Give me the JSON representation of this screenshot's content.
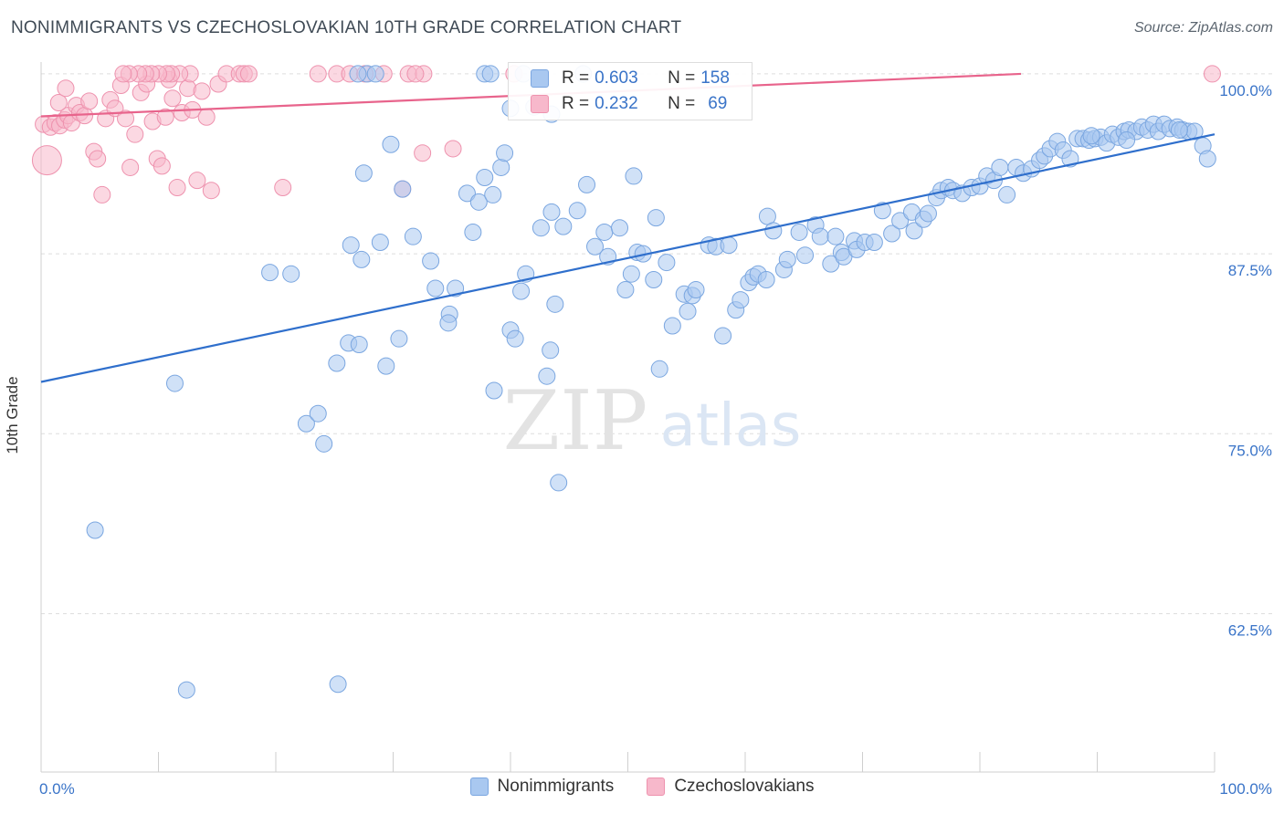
{
  "title": "NONIMMIGRANTS VS CZECHOSLOVAKIAN 10TH GRADE CORRELATION CHART",
  "source": "Source: ZipAtlas.com",
  "watermark": {
    "zip": "ZIP",
    "atlas": "atlas"
  },
  "colors": {
    "blue_fill": "#a9c8f0",
    "blue_stroke": "#7aa6e0",
    "blue_line": "#2f6fcc",
    "pink_fill": "#f7b8cb",
    "pink_stroke": "#ee92ae",
    "pink_line": "#e8648c",
    "axis_text": "#3a74c8",
    "grid": "#dddddd"
  },
  "legend": {
    "rows": [
      {
        "r_label": "R =",
        "r_value": "0.603",
        "n_label": "N =",
        "n_value": "158"
      },
      {
        "r_label": "R =",
        "r_value": "0.232",
        "n_label": "N =",
        "n_value": "69"
      }
    ]
  },
  "bottom_legend": [
    "Nonimmigrants",
    "Czechoslovakians"
  ],
  "chart_data": {
    "type": "scatter",
    "title": "NONIMMIGRANTS VS CZECHOSLOVAKIAN 10TH GRADE CORRELATION CHART",
    "xlabel": "",
    "ylabel": "10th Grade",
    "xlim": [
      0,
      100
    ],
    "ylim": [
      51.5,
      101.2
    ],
    "x_tick_labels": [
      "0.0%",
      "100.0%"
    ],
    "y_ticks": [
      62.5,
      75.0,
      87.5,
      100.0
    ],
    "y_tick_labels": [
      "62.5%",
      "75.0%",
      "87.5%",
      "100.0%"
    ],
    "grid": "horizontal dashed",
    "legend_position": "top-center",
    "series": [
      {
        "name": "Nonimmigrants",
        "r": 0.603,
        "n": 158,
        "trend": [
          [
            0,
            78.6
          ],
          [
            100,
            95.8
          ]
        ],
        "points": [
          [
            11.4,
            78.5
          ],
          [
            4.6,
            68.3
          ],
          [
            12.4,
            57.2
          ],
          [
            19.5,
            86.2
          ],
          [
            21.3,
            86.1
          ],
          [
            22.6,
            75.7
          ],
          [
            23.6,
            76.4
          ],
          [
            25.3,
            57.6
          ],
          [
            24.1,
            74.3
          ],
          [
            25.2,
            79.9
          ],
          [
            26.2,
            81.3
          ],
          [
            27.1,
            81.2
          ],
          [
            27.3,
            87.1
          ],
          [
            26.4,
            88.1
          ],
          [
            27.5,
            93.1
          ],
          [
            28.9,
            88.3
          ],
          [
            29.4,
            79.7
          ],
          [
            30.5,
            81.6
          ],
          [
            30.8,
            92.0
          ],
          [
            29.8,
            95.1
          ],
          [
            31.7,
            88.7
          ],
          [
            33.2,
            87.0
          ],
          [
            33.6,
            85.1
          ],
          [
            35.3,
            85.1
          ],
          [
            34.8,
            83.3
          ],
          [
            34.7,
            82.7
          ],
          [
            36.3,
            91.7
          ],
          [
            36.8,
            89.0
          ],
          [
            37.3,
            91.1
          ],
          [
            37.8,
            92.8
          ],
          [
            38.5,
            91.6
          ],
          [
            39.2,
            93.5
          ],
          [
            39.5,
            94.5
          ],
          [
            38.6,
            78.0
          ],
          [
            40.0,
            82.2
          ],
          [
            40.4,
            81.6
          ],
          [
            40.9,
            84.9
          ],
          [
            41.3,
            86.1
          ],
          [
            42.6,
            89.3
          ],
          [
            43.8,
            84.0
          ],
          [
            43.5,
            90.4
          ],
          [
            43.4,
            80.8
          ],
          [
            43.1,
            79.0
          ],
          [
            44.5,
            89.4
          ],
          [
            44.1,
            71.6
          ],
          [
            45.7,
            90.5
          ],
          [
            46.5,
            92.3
          ],
          [
            47.2,
            88.0
          ],
          [
            48.0,
            89.0
          ],
          [
            48.3,
            87.3
          ],
          [
            49.3,
            89.3
          ],
          [
            49.8,
            85.0
          ],
          [
            50.3,
            86.1
          ],
          [
            50.5,
            92.9
          ],
          [
            50.8,
            87.6
          ],
          [
            51.3,
            87.5
          ],
          [
            52.2,
            85.7
          ],
          [
            52.4,
            90.0
          ],
          [
            52.7,
            79.5
          ],
          [
            53.3,
            86.9
          ],
          [
            53.8,
            82.5
          ],
          [
            54.8,
            84.7
          ],
          [
            55.5,
            84.6
          ],
          [
            55.8,
            85.0
          ],
          [
            55.1,
            83.5
          ],
          [
            56.9,
            88.1
          ],
          [
            57.5,
            88.0
          ],
          [
            58.6,
            88.1
          ],
          [
            58.1,
            81.8
          ],
          [
            59.2,
            83.6
          ],
          [
            59.6,
            84.3
          ],
          [
            60.3,
            85.5
          ],
          [
            60.7,
            85.9
          ],
          [
            61.1,
            86.1
          ],
          [
            61.8,
            85.7
          ],
          [
            61.9,
            90.1
          ],
          [
            62.4,
            89.1
          ],
          [
            63.3,
            86.4
          ],
          [
            63.6,
            87.1
          ],
          [
            64.6,
            89.0
          ],
          [
            65.1,
            87.4
          ],
          [
            66.0,
            89.5
          ],
          [
            66.4,
            88.7
          ],
          [
            67.3,
            86.8
          ],
          [
            67.7,
            88.7
          ],
          [
            68.2,
            87.6
          ],
          [
            68.4,
            87.3
          ],
          [
            69.3,
            88.4
          ],
          [
            69.5,
            87.8
          ],
          [
            70.2,
            88.3
          ],
          [
            71.0,
            88.3
          ],
          [
            71.7,
            90.5
          ],
          [
            72.5,
            88.9
          ],
          [
            73.2,
            89.8
          ],
          [
            74.2,
            90.4
          ],
          [
            74.4,
            89.1
          ],
          [
            75.2,
            89.9
          ],
          [
            75.6,
            90.3
          ],
          [
            76.3,
            91.4
          ],
          [
            76.7,
            91.9
          ],
          [
            77.3,
            92.1
          ],
          [
            77.7,
            91.9
          ],
          [
            78.5,
            91.7
          ],
          [
            79.3,
            92.1
          ],
          [
            80.0,
            92.2
          ],
          [
            80.6,
            92.9
          ],
          [
            81.2,
            92.6
          ],
          [
            81.7,
            93.5
          ],
          [
            82.3,
            91.6
          ],
          [
            83.1,
            93.5
          ],
          [
            83.7,
            93.1
          ],
          [
            84.4,
            93.4
          ],
          [
            85.1,
            94.0
          ],
          [
            85.5,
            94.3
          ],
          [
            86.0,
            94.8
          ],
          [
            86.6,
            95.3
          ],
          [
            87.1,
            94.7
          ],
          [
            87.7,
            94.1
          ],
          [
            88.3,
            95.5
          ],
          [
            88.8,
            95.5
          ],
          [
            89.3,
            95.4
          ],
          [
            89.8,
            95.5
          ],
          [
            90.3,
            95.6
          ],
          [
            90.8,
            95.2
          ],
          [
            91.3,
            95.8
          ],
          [
            91.8,
            95.6
          ],
          [
            92.3,
            96.0
          ],
          [
            92.7,
            96.1
          ],
          [
            93.3,
            96.0
          ],
          [
            93.8,
            96.3
          ],
          [
            94.3,
            96.1
          ],
          [
            94.8,
            96.5
          ],
          [
            95.2,
            96.0
          ],
          [
            95.7,
            96.5
          ],
          [
            96.2,
            96.2
          ],
          [
            96.8,
            96.3
          ],
          [
            97.3,
            96.1
          ],
          [
            97.8,
            96.0
          ],
          [
            98.3,
            96.0
          ],
          [
            99.0,
            95.0
          ],
          [
            99.4,
            94.1
          ],
          [
            97.0,
            96.1
          ],
          [
            92.5,
            95.4
          ],
          [
            89.5,
            95.7
          ],
          [
            27.8,
            100.0
          ],
          [
            27.0,
            100.0
          ],
          [
            28.5,
            100.0
          ],
          [
            37.8,
            100.0
          ],
          [
            38.3,
            100.0
          ],
          [
            40.0,
            97.6
          ],
          [
            42.0,
            97.7
          ],
          [
            43.5,
            97.2
          ],
          [
            41.1,
            100.0
          ],
          [
            46.2,
            100.0
          ]
        ]
      },
      {
        "name": "Czechoslovakians",
        "r": 0.232,
        "n": 69,
        "trend": [
          [
            0,
            97.05
          ],
          [
            83.5,
            100.0
          ]
        ],
        "points": [
          [
            0.2,
            96.5
          ],
          [
            0.5,
            94.0
          ],
          [
            0.8,
            96.3
          ],
          [
            1.2,
            96.6
          ],
          [
            1.6,
            96.4
          ],
          [
            2.0,
            96.8
          ],
          [
            2.3,
            97.1
          ],
          [
            2.6,
            96.6
          ],
          [
            3.0,
            97.8
          ],
          [
            3.3,
            97.3
          ],
          [
            3.7,
            97.1
          ],
          [
            4.1,
            98.1
          ],
          [
            4.5,
            94.6
          ],
          [
            4.8,
            94.1
          ],
          [
            5.2,
            91.6
          ],
          [
            5.5,
            96.9
          ],
          [
            5.9,
            98.2
          ],
          [
            6.3,
            97.6
          ],
          [
            6.8,
            99.2
          ],
          [
            7.2,
            96.9
          ],
          [
            7.6,
            93.5
          ],
          [
            8.0,
            95.8
          ],
          [
            8.5,
            98.7
          ],
          [
            9.0,
            99.3
          ],
          [
            9.5,
            96.7
          ],
          [
            9.9,
            94.1
          ],
          [
            10.3,
            93.6
          ],
          [
            10.6,
            97.0
          ],
          [
            10.9,
            99.6
          ],
          [
            11.2,
            98.3
          ],
          [
            11.6,
            92.1
          ],
          [
            12.0,
            97.3
          ],
          [
            12.5,
            99.0
          ],
          [
            12.9,
            97.5
          ],
          [
            13.3,
            92.6
          ],
          [
            13.7,
            98.8
          ],
          [
            14.1,
            97.0
          ],
          [
            14.5,
            91.9
          ],
          [
            15.1,
            99.3
          ],
          [
            15.8,
            100.0
          ],
          [
            16.9,
            100.0
          ],
          [
            17.3,
            100.0
          ],
          [
            17.7,
            100.0
          ],
          [
            12.7,
            100.0
          ],
          [
            11.8,
            100.0
          ],
          [
            11.1,
            100.0
          ],
          [
            10.7,
            100.0
          ],
          [
            10.0,
            100.0
          ],
          [
            9.4,
            100.0
          ],
          [
            8.9,
            100.0
          ],
          [
            8.3,
            100.0
          ],
          [
            7.5,
            100.0
          ],
          [
            7.0,
            100.0
          ],
          [
            20.6,
            92.1
          ],
          [
            23.6,
            100.0
          ],
          [
            25.2,
            100.0
          ],
          [
            26.3,
            100.0
          ],
          [
            27.6,
            100.0
          ],
          [
            29.2,
            100.0
          ],
          [
            30.8,
            92.0
          ],
          [
            31.3,
            100.0
          ],
          [
            32.6,
            100.0
          ],
          [
            31.9,
            100.0
          ],
          [
            32.5,
            94.5
          ],
          [
            35.1,
            94.8
          ],
          [
            40.3,
            100.0
          ],
          [
            99.8,
            100.0
          ],
          [
            1.5,
            98.0
          ],
          [
            2.1,
            99.0
          ]
        ]
      }
    ]
  }
}
